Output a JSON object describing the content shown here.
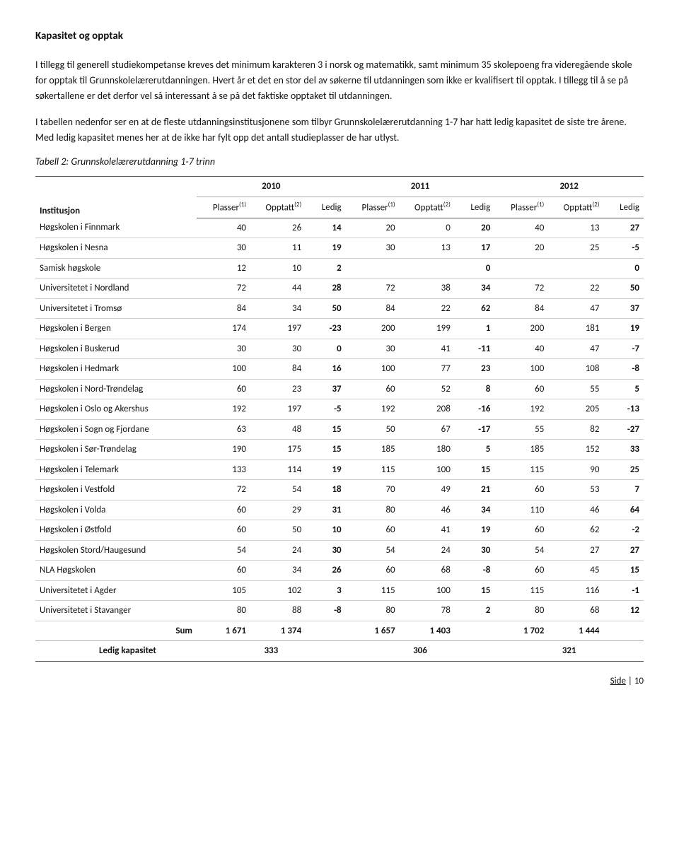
{
  "heading": "Kapasitet og opptak",
  "paragraphs": [
    "I tillegg til generell studiekompetanse kreves det minimum karakteren 3 i norsk og matematikk, samt minimum 35 skolepoeng fra videregående skole for opptak til Grunnskolelærerutdanningen. Hvert år et det en stor del av søkerne til utdanningen som ikke er kvalifisert til opptak. I tillegg til å se på søkertallene er det derfor vel så interessant å se på det faktiske opptaket til utdanningen.",
    "I tabellen nedenfor ser en at de fleste utdanningsinstitusjonene som tilbyr Grunnskolelærerutdanning 1-7 har hatt ledig kapasitet de siste tre årene. Med ledig kapasitet menes her at de ikke har fylt opp det antall studieplasser de har utlyst."
  ],
  "table_caption": "Tabell 2: Grunnskolelærerutdanning 1-7 trinn",
  "table": {
    "inst_label": "Institusjon",
    "years": [
      "2010",
      "2011",
      "2012"
    ],
    "col_labels": {
      "plasser": "Plasser",
      "opptatt": "Opptatt",
      "ledig": "Ledig",
      "sup1": "(1)",
      "sup2": "(2)"
    },
    "rows": [
      {
        "name": "Høgskolen i Finnmark",
        "v": [
          40,
          26,
          14,
          20,
          0,
          20,
          40,
          13,
          27
        ]
      },
      {
        "name": "Høgskolen i Nesna",
        "v": [
          30,
          11,
          19,
          30,
          13,
          17,
          20,
          25,
          -5
        ]
      },
      {
        "name": "Samisk høgskole",
        "v": [
          12,
          10,
          2,
          "",
          "",
          0,
          "",
          "",
          0
        ]
      },
      {
        "name": "Universitetet i Nordland",
        "v": [
          72,
          44,
          28,
          72,
          38,
          34,
          72,
          22,
          50
        ]
      },
      {
        "name": "Universitetet i Tromsø",
        "v": [
          84,
          34,
          50,
          84,
          22,
          62,
          84,
          47,
          37
        ]
      },
      {
        "name": "Høgskolen i Bergen",
        "v": [
          174,
          197,
          -23,
          200,
          199,
          1,
          200,
          181,
          19
        ]
      },
      {
        "name": "Høgskolen i Buskerud",
        "v": [
          30,
          30,
          0,
          30,
          41,
          -11,
          40,
          47,
          -7
        ]
      },
      {
        "name": "Høgskolen i Hedmark",
        "v": [
          100,
          84,
          16,
          100,
          77,
          23,
          100,
          108,
          -8
        ]
      },
      {
        "name": "Høgskolen i Nord-Trøndelag",
        "v": [
          60,
          23,
          37,
          60,
          52,
          8,
          60,
          55,
          5
        ]
      },
      {
        "name": "Høgskolen i Oslo og Akershus",
        "v": [
          192,
          197,
          -5,
          192,
          208,
          -16,
          192,
          205,
          -13
        ]
      },
      {
        "name": "Høgskolen i Sogn og Fjordane",
        "v": [
          63,
          48,
          15,
          50,
          67,
          -17,
          55,
          82,
          -27
        ]
      },
      {
        "name": "Høgskolen i Sør-Trøndelag",
        "v": [
          190,
          175,
          15,
          185,
          180,
          5,
          185,
          152,
          33
        ]
      },
      {
        "name": "Høgskolen i Telemark",
        "v": [
          133,
          114,
          19,
          115,
          100,
          15,
          115,
          90,
          25
        ]
      },
      {
        "name": "Høgskolen i Vestfold",
        "v": [
          72,
          54,
          18,
          70,
          49,
          21,
          60,
          53,
          7
        ]
      },
      {
        "name": "Høgskolen i Volda",
        "v": [
          60,
          29,
          31,
          80,
          46,
          34,
          110,
          46,
          64
        ]
      },
      {
        "name": "Høgskolen i Østfold",
        "v": [
          60,
          50,
          10,
          60,
          41,
          19,
          60,
          62,
          -2
        ]
      },
      {
        "name": "Høgskolen Stord/Haugesund",
        "v": [
          54,
          24,
          30,
          54,
          24,
          30,
          54,
          27,
          27
        ]
      },
      {
        "name": "NLA Høgskolen",
        "v": [
          60,
          34,
          26,
          60,
          68,
          -8,
          60,
          45,
          15
        ]
      },
      {
        "name": "Universitetet i Agder",
        "v": [
          105,
          102,
          3,
          115,
          100,
          15,
          115,
          116,
          -1
        ]
      },
      {
        "name": "Universitetet i Stavanger",
        "v": [
          80,
          88,
          -8,
          80,
          78,
          2,
          80,
          68,
          12
        ]
      }
    ],
    "sum_label": "Sum",
    "sum": [
      "1 671",
      "1 374",
      "",
      "1 657",
      "1 403",
      "",
      "1 702",
      "1 444",
      ""
    ],
    "ledig_label": "Ledig kapasitet",
    "ledig_values": [
      "333",
      "306",
      "321"
    ]
  },
  "footer": {
    "prefix": "Side",
    "sep": " | ",
    "num": "10"
  }
}
